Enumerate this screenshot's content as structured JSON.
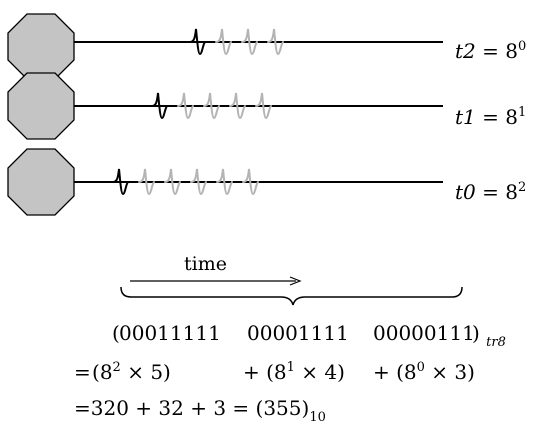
{
  "neurons": [
    {
      "label_var": "t2",
      "label_base": "8",
      "label_exp": "0",
      "spike_count": 4
    },
    {
      "label_var": "t1",
      "label_base": "8",
      "label_exp": "1",
      "spike_count": 5
    },
    {
      "label_var": "t0",
      "label_base": "8",
      "label_exp": "2",
      "spike_count": 6
    }
  ],
  "time_arrow": {
    "label": "time"
  },
  "code_line": {
    "open": "(",
    "groups": [
      "00011111",
      "00001111",
      "00000111"
    ],
    "close": ")",
    "subscript": "tr8"
  },
  "expansion_line": {
    "prefix": "=",
    "terms": [
      {
        "open": "(",
        "base": "8",
        "exp": "2",
        "times": "×",
        "digit": "5",
        "close": ")"
      },
      {
        "open": "+ (",
        "base": "8",
        "exp": "1",
        "times": "×",
        "digit": "4",
        "close": ")"
      },
      {
        "open": "+ (",
        "base": "8",
        "exp": "0",
        "times": "×",
        "digit": "3",
        "close": ")"
      }
    ]
  },
  "result_line": {
    "text": "=320 + 32 + 3 = (355)",
    "subscript": "10"
  },
  "colors": {
    "soma_fill": "#c4c4c4",
    "soma_stroke": "#000000",
    "spike_active": "#000000",
    "spike_inactive": "#b4b4b4",
    "axon": "#000000"
  }
}
